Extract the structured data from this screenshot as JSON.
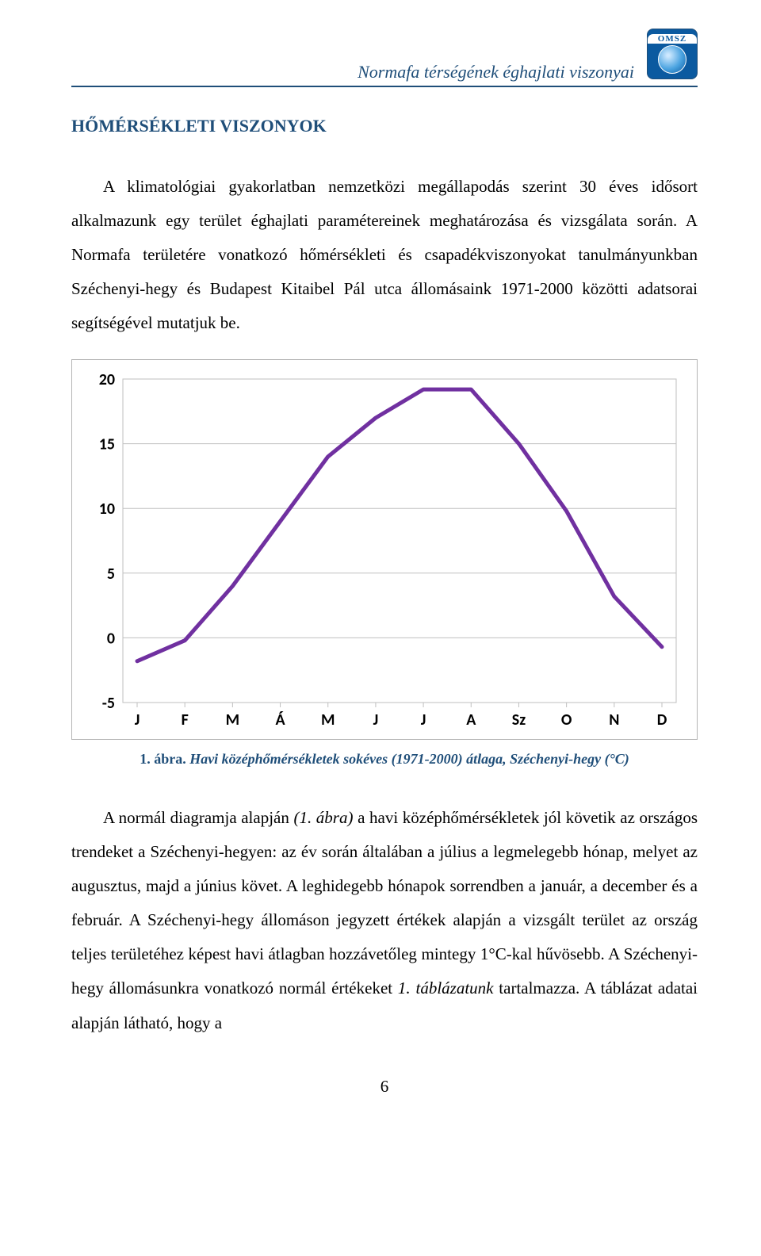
{
  "header": {
    "running_title": "Normafa térségének éghajlati viszonyai",
    "logo_text": "OMSZ",
    "logo_bg": "#0b5aa0",
    "rule_color": "#1f4e79"
  },
  "section_title": "HŐMÉRSÉKLETI VISZONYOK",
  "paragraph1": "A klimatológiai gyakorlatban nemzetközi megállapodás szerint 30 éves idősort alkalmazunk egy terület éghajlati paramétereinek meghatározása és vizsgálata során. A Normafa területére vonatkozó hőmérsékleti és csapadékviszonyokat tanulmányunkban Széchenyi-hegy és Budapest Kitaibel Pál utca állomásaink 1971-2000 közötti adatsorai segítségével mutatjuk be.",
  "chart": {
    "type": "line",
    "categories": [
      "J",
      "F",
      "M",
      "Á",
      "M",
      "J",
      "J",
      "A",
      "Sz",
      "O",
      "N",
      "D"
    ],
    "values": [
      -1.8,
      -0.2,
      4.0,
      9.0,
      14.0,
      17.0,
      19.2,
      19.2,
      15.0,
      9.8,
      3.2,
      -0.7
    ],
    "line_color": "#7030a0",
    "line_width": 5,
    "grid_color": "#bfbfbf",
    "border_color": "#b4b4b4",
    "ylim": [
      -5,
      20
    ],
    "ytick_step": 5,
    "yticks": [
      "-5",
      "0",
      "5",
      "10",
      "15",
      "20"
    ],
    "label_fontsize": 20,
    "label_fontweight": "bold",
    "label_font": "Calibri, Arial, sans-serif",
    "background_color": "#ffffff"
  },
  "caption": {
    "lead": "1. ábra.",
    "text": " Havi középhőmérsékletek sokéves (1971-2000) átlaga, Széchenyi-hegy (°C)"
  },
  "paragraph2_parts": {
    "p0": "A normál diagramja alapján ",
    "i1": "(1. ábra)",
    "p1": " a havi középhőmérsékletek jól követik az országos trendeket a Széchenyi-hegyen: az év során általában a július a legmelegebb hónap, melyet az augusztus, majd a június követ. A leghidegebb hónapok sorrendben a január, a december és a február. A Széchenyi-hegy állomáson jegyzett értékek alapján a vizsgált terület az ország teljes területéhez képest havi átlagban hozzávetőleg mintegy 1°C-kal hűvösebb. A Széchenyi-hegy állomásunkra vonatkozó normál értékeket ",
    "i2": "1. táblázatunk",
    "p2": " tartalmazza. A táblázat adatai alapján látható, hogy a"
  },
  "page_number": "6"
}
